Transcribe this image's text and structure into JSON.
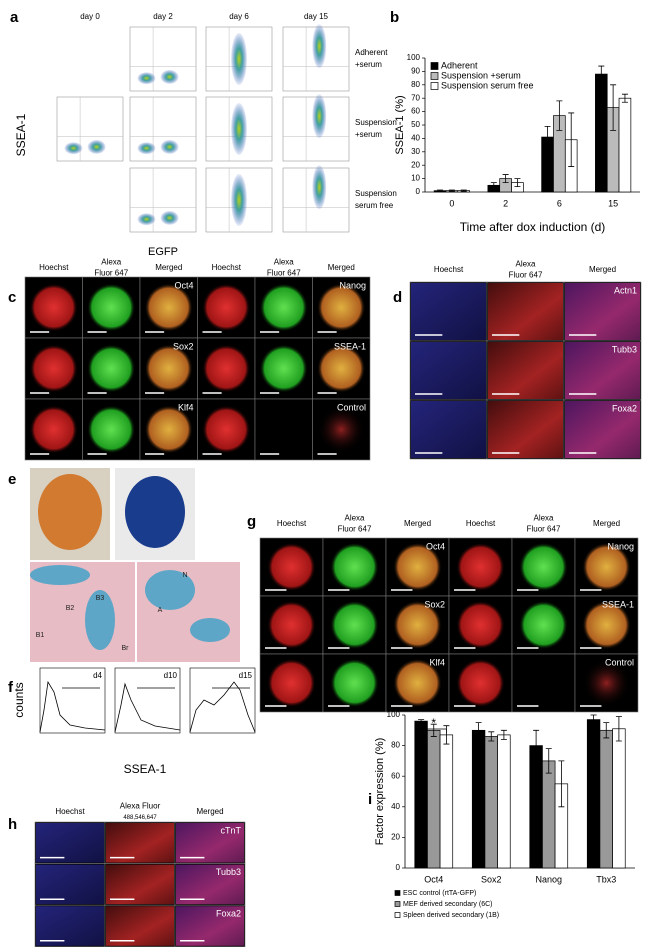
{
  "a": {
    "label": "a",
    "y_axis_label": "SSEA-1",
    "days": [
      "day 0",
      "day 2",
      "day 6",
      "day 15"
    ],
    "conditions": [
      [
        "Adherent",
        "+serum"
      ],
      [
        "Suspension",
        "+serum"
      ],
      [
        "Suspension",
        "serum free"
      ]
    ]
  },
  "c": {
    "label": "c",
    "title": "EGFP",
    "stains": [
      [
        "Hoechst"
      ],
      [
        "Alexa",
        "Fluor 647"
      ],
      [
        "Merged"
      ]
    ],
    "markers": [
      "Oct4",
      "Sox2",
      "Klf4",
      "Nanog",
      "SSEA-1",
      "Control"
    ]
  },
  "d": {
    "label": "d",
    "stains": [
      [
        "Hoechst"
      ],
      [
        "Alexa",
        "Fluor 647"
      ],
      [
        "Merged"
      ]
    ],
    "markers": [
      "Actn1",
      "Tubb3",
      "Foxa2"
    ]
  },
  "e": {
    "label": "e",
    "left_labels": [
      "B1",
      "B2",
      "B3",
      "Br"
    ],
    "right_labels": [
      "N",
      "A"
    ]
  },
  "f": {
    "label": "f",
    "y_axis_label": "counts",
    "x_axis_label": "SSEA-1",
    "days": [
      "d4",
      "d10",
      "d15"
    ]
  },
  "g": {
    "label": "g",
    "stains": [
      [
        "Hoechst"
      ],
      [
        "Alexa",
        "Fluor 647"
      ],
      [
        "Merged"
      ]
    ],
    "markers": [
      "Oct4",
      "Sox2",
      "Klf4",
      "Nanog",
      "SSEA-1",
      "Control"
    ]
  },
  "h": {
    "label": "h",
    "stains": [
      [
        "Hoechst"
      ],
      [
        "Alexa Fluor",
        "488,546,647"
      ],
      [
        "Merged"
      ]
    ],
    "markers": [
      "cTnT",
      "Tubb3",
      "Foxa2"
    ]
  },
  "chart_data": [
    {
      "type": "bar",
      "panel_label": "b",
      "ylabel": "SSEA-1 (%)",
      "xlabel": "Time after dox induction (d)",
      "categories": [
        "0",
        "2",
        "6",
        "15"
      ],
      "series": [
        {
          "name": "Adherent",
          "color": "#000000",
          "values": [
            1,
            5,
            41,
            88
          ],
          "errors": [
            0.5,
            2,
            8,
            6
          ]
        },
        {
          "name": "Suspension +serum",
          "color": "#bbbbbb",
          "values": [
            1,
            10,
            57,
            63
          ],
          "errors": [
            0.5,
            3,
            11,
            17
          ]
        },
        {
          "name": "Suspension serum free",
          "color": "#ffffff",
          "values": [
            1,
            7,
            39,
            70
          ],
          "errors": [
            0.5,
            3,
            20,
            3
          ]
        }
      ],
      "ylim": [
        0,
        100
      ],
      "yticks": [
        0,
        10,
        20,
        30,
        40,
        50,
        60,
        70,
        80,
        90,
        100
      ],
      "legend": "upper left"
    },
    {
      "type": "bar",
      "panel_label": "i",
      "ylabel": "Factor expression (%)",
      "annotation": "*",
      "categories": [
        "Oct4",
        "Sox2",
        "Nanog",
        "Tbx3"
      ],
      "series": [
        {
          "name": "ESC control (rtTA-GFP)",
          "color": "#000000",
          "values": [
            96,
            90,
            80,
            97
          ],
          "errors": [
            1,
            5,
            10,
            3
          ]
        },
        {
          "name": "MEF derived secondary (6C)",
          "color": "#999999",
          "values": [
            90,
            86,
            70,
            90
          ],
          "errors": [
            4,
            3,
            8,
            5
          ]
        },
        {
          "name": "Spleen derived secondary (1B)",
          "color": "#ffffff",
          "values": [
            87,
            87,
            55,
            91
          ],
          "errors": [
            6,
            3,
            15,
            8
          ]
        }
      ],
      "ylim": [
        0,
        100
      ],
      "yticks": [
        0,
        20,
        40,
        60,
        80,
        100
      ],
      "legend": "bottom"
    }
  ]
}
